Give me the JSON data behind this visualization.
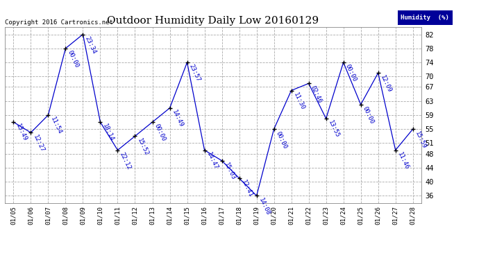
{
  "title": "Outdoor Humidity Daily Low 20160129",
  "copyright": "Copyright 2016 Cartronics.net",
  "legend_label": "Humidity  (%)",
  "x_labels": [
    "01/05",
    "01/06",
    "01/07",
    "01/08",
    "01/09",
    "01/10",
    "01/11",
    "01/12",
    "01/13",
    "01/14",
    "01/15",
    "01/16",
    "01/17",
    "01/18",
    "01/19",
    "01/20",
    "01/21",
    "01/22",
    "01/23",
    "01/24",
    "01/25",
    "01/26",
    "01/27",
    "01/28"
  ],
  "y_values": [
    57,
    54,
    59,
    78,
    82,
    57,
    49,
    53,
    57,
    61,
    74,
    49,
    46,
    41,
    36,
    55,
    66,
    68,
    58,
    74,
    62,
    71,
    49,
    55
  ],
  "point_labels": [
    "13:49",
    "12:27",
    "11:54",
    "00:00",
    "23:34",
    "18:14",
    "22:12",
    "15:52",
    "00:00",
    "14:49",
    "23:57",
    "14:47",
    "15:03",
    "12:41",
    "14:08",
    "00:00",
    "11:30",
    "02:46",
    "13:55",
    "00:00",
    "00:00",
    "12:09",
    "11:46",
    "15:59"
  ],
  "line_color": "#0000cc",
  "marker_color": "#000000",
  "bg_color": "#ffffff",
  "plot_bg_color": "#ffffff",
  "grid_color": "#aaaaaa",
  "ylim": [
    34,
    84
  ],
  "yticks": [
    36,
    40,
    44,
    48,
    51,
    55,
    59,
    63,
    67,
    70,
    74,
    78,
    82
  ],
  "legend_bg": "#000099",
  "legend_text_color": "#ffffff",
  "title_fontsize": 11,
  "label_fontsize": 6.5,
  "copyright_fontsize": 6.5
}
